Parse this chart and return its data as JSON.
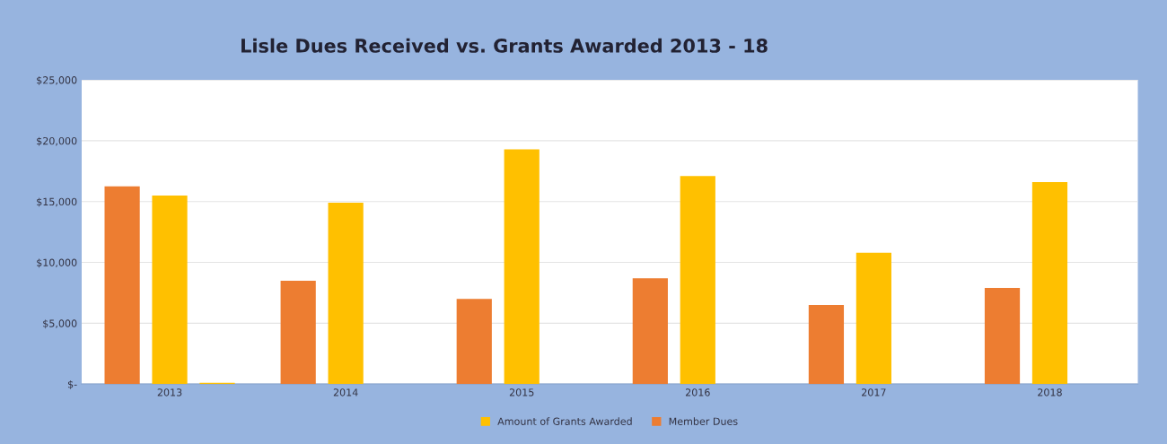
{
  "chart_data": {
    "type": "bar",
    "title": "Lisle Dues Received vs. Grants Awarded 2013 - 18",
    "categories": [
      "2013",
      "2014",
      "2015",
      "2016",
      "2017",
      "2018"
    ],
    "series": [
      {
        "name": "Member Dues",
        "color": "#ed7d31",
        "values": [
          16250,
          8500,
          7000,
          8700,
          6500,
          7900
        ]
      },
      {
        "name": "Amount of Grants Awarded",
        "color": "#ffc000",
        "values": [
          15500,
          14900,
          19300,
          17100,
          10800,
          16600
        ]
      },
      {
        "color": "#ffc000",
        "values": [
          100,
          null,
          null,
          null,
          null,
          null
        ]
      }
    ],
    "ylim": [
      0,
      25000
    ],
    "yticks": [
      {
        "value": 0,
        "label": "$-"
      },
      {
        "value": 5000,
        "label": "$5,000"
      },
      {
        "value": 10000,
        "label": "$10,000"
      },
      {
        "value": 15000,
        "label": "$15,000"
      },
      {
        "value": 20000,
        "label": "$20,000"
      },
      {
        "value": 25000,
        "label": "$25,000"
      }
    ],
    "grid": "y",
    "legend": "bottom"
  }
}
